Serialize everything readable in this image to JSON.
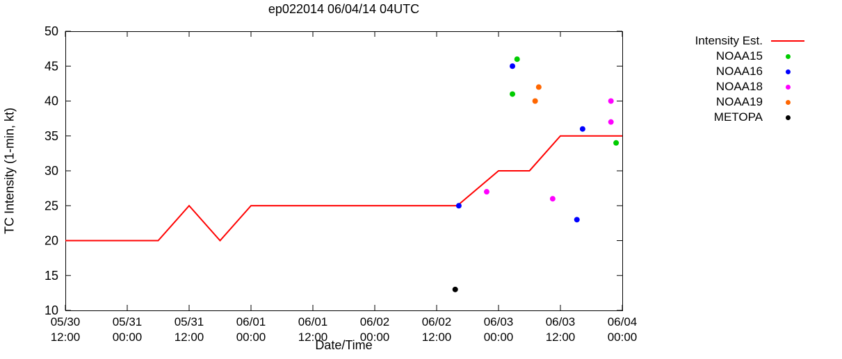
{
  "chart_data": {
    "type": "line",
    "title": "ep022014 06/04/14 04UTC",
    "xlabel": "Date/Time",
    "ylabel": "TC Intensity (1-min, kt)",
    "ylim": [
      10,
      50
    ],
    "yticks": [
      10,
      15,
      20,
      25,
      30,
      35,
      40,
      45,
      50
    ],
    "xlim_hours": [
      0,
      108
    ],
    "x_origin": "05/30 12:00",
    "xticks": [
      {
        "t": 0,
        "date": "05/30",
        "time": "12:00"
      },
      {
        "t": 12,
        "date": "05/31",
        "time": "00:00"
      },
      {
        "t": 24,
        "date": "05/31",
        "time": "12:00"
      },
      {
        "t": 36,
        "date": "06/01",
        "time": "00:00"
      },
      {
        "t": 48,
        "date": "06/01",
        "time": "12:00"
      },
      {
        "t": 60,
        "date": "06/02",
        "time": "00:00"
      },
      {
        "t": 72,
        "date": "06/02",
        "time": "12:00"
      },
      {
        "t": 84,
        "date": "06/03",
        "time": "00:00"
      },
      {
        "t": 96,
        "date": "06/03",
        "time": "12:00"
      },
      {
        "t": 108,
        "date": "06/04",
        "time": "00:00"
      }
    ],
    "grid": false,
    "legend_position": "right-outside",
    "line_series": {
      "name": "Intensity Est.",
      "color": "#ff0000",
      "points": [
        [
          0,
          20
        ],
        [
          18,
          20
        ],
        [
          24,
          25
        ],
        [
          30,
          20
        ],
        [
          36,
          25
        ],
        [
          76,
          25
        ],
        [
          84,
          30
        ],
        [
          90,
          30
        ],
        [
          96,
          35
        ],
        [
          108,
          35
        ]
      ]
    },
    "scatter_series": [
      {
        "name": "NOAA15",
        "color": "#00cc00",
        "points": [
          [
            86.7,
            41
          ],
          [
            87.6,
            46
          ],
          [
            106.8,
            34
          ]
        ]
      },
      {
        "name": "NOAA16",
        "color": "#0000ff",
        "points": [
          [
            76.3,
            25
          ],
          [
            86.7,
            45
          ],
          [
            99.2,
            23
          ],
          [
            100.3,
            36
          ]
        ]
      },
      {
        "name": "NOAA18",
        "color": "#ff00ff",
        "points": [
          [
            81.7,
            27
          ],
          [
            94.5,
            26
          ],
          [
            105.8,
            37
          ],
          [
            105.8,
            40
          ]
        ]
      },
      {
        "name": "NOAA19",
        "color": "#ff6600",
        "points": [
          [
            91.1,
            40
          ],
          [
            91.8,
            42
          ]
        ]
      },
      {
        "name": "METOPA",
        "color": "#000000",
        "points": [
          [
            75.6,
            13
          ]
        ]
      }
    ]
  }
}
